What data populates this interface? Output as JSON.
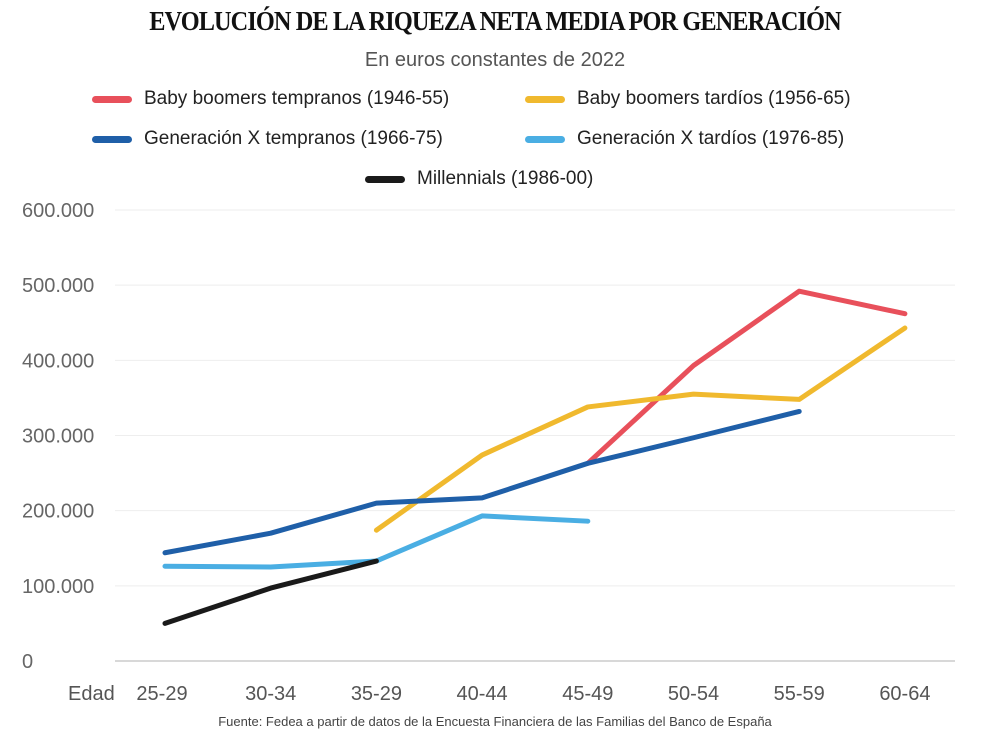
{
  "chart_data": {
    "type": "line",
    "title": "EVOLUCIÓN DE LA RIQUEZA NETA MEDIA POR GENERACIÓN",
    "subtitle": "En euros constantes de 2022",
    "xlabel": "Edad",
    "ylabel": "",
    "categories": [
      "25-29",
      "30-34",
      "35-29",
      "40-44",
      "45-49",
      "50-54",
      "55-59",
      "60-64"
    ],
    "ylim": [
      0,
      600000
    ],
    "yticks": [
      0,
      100000,
      200000,
      300000,
      400000,
      500000,
      600000
    ],
    "ytick_labels": [
      "0",
      "100.000",
      "200.000",
      "300.000",
      "400.000",
      "500.000",
      "600.000"
    ],
    "grid": true,
    "legend_placement": "top",
    "series": [
      {
        "name": "Baby boomers tempranos (1946-55)",
        "color": "#e8505b",
        "values": [
          null,
          null,
          null,
          null,
          263000,
          393000,
          492000,
          462000
        ]
      },
      {
        "name": "Baby boomers tardíos (1956-65)",
        "color": "#f0b92e",
        "values": [
          null,
          null,
          174000,
          274000,
          338000,
          355000,
          348000,
          443000
        ]
      },
      {
        "name": "Generación X tempranos (1966-75)",
        "color": "#1f5fa8",
        "values": [
          144000,
          170000,
          210000,
          217000,
          263000,
          297000,
          332000,
          null
        ]
      },
      {
        "name": "Generación X tardíos (1976-85)",
        "color": "#4aaee3",
        "values": [
          126000,
          125000,
          133000,
          193000,
          186000,
          null,
          null,
          null
        ]
      },
      {
        "name": "Millennials (1986-00)",
        "color": "#1a1a1a",
        "values": [
          50000,
          97000,
          133000,
          null,
          null,
          null,
          null,
          null
        ]
      }
    ],
    "source": "Fuente: Fedea a partir de datos de la Encuesta Financiera de las Familias del Banco de España"
  }
}
